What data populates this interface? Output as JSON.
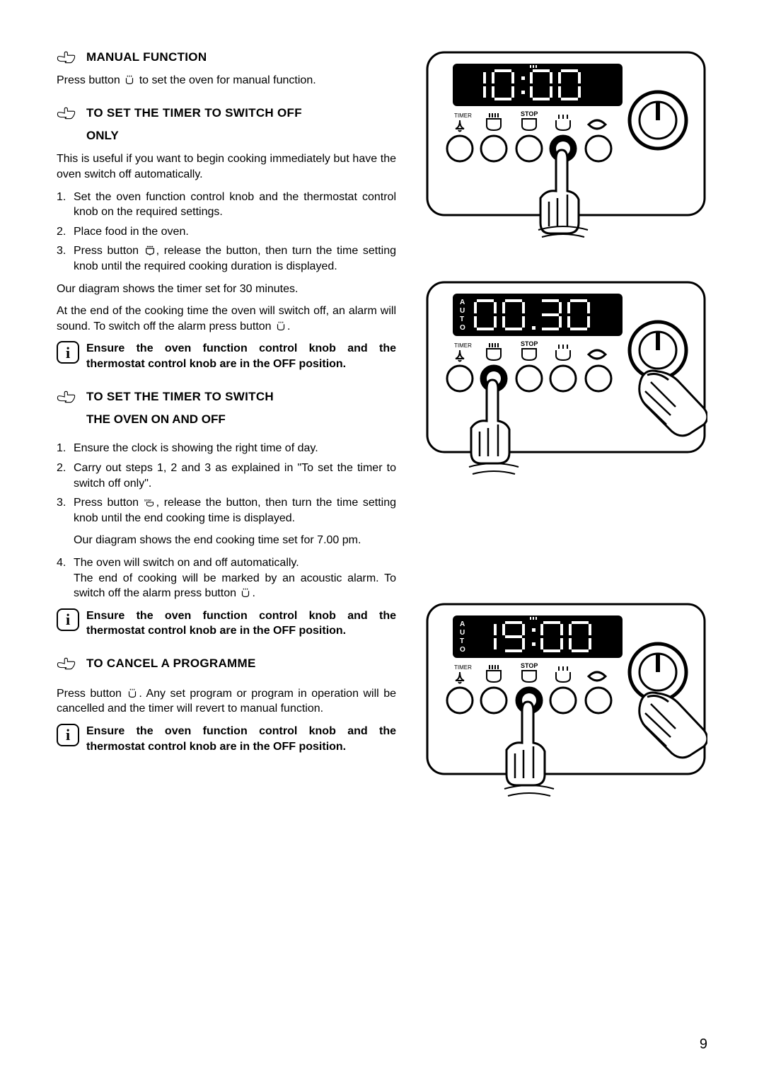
{
  "sections": {
    "manual": {
      "heading": "MANUAL FUNCTION",
      "body": "Press button       to set the oven for manual function."
    },
    "switchOffOnly": {
      "heading": "TO SET THE TIMER TO SWITCH OFF",
      "heading2": "ONLY",
      "intro": "This is useful if you want to begin cooking immediately but have the oven switch off automatically.",
      "steps": {
        "s1n": "1.",
        "s1": "Set  the oven function control knob and the thermostat control knob on the required settings.",
        "s2n": "2.",
        "s2": "Place food in the oven.",
        "s3n": "3.",
        "s3a": "Press button ",
        "s3b": ", release the button, then turn the time setting knob until the required cooking duration is displayed."
      },
      "after1": "Our diagram shows the timer set for 30 minutes.",
      "after2a": "At the end of the cooking time the oven will switch off, an alarm will sound. To switch off the alarm press button ",
      "after2b": ".",
      "ensure": "Ensure the oven function control knob and the thermostat control knob are in the OFF position."
    },
    "switchOnOff": {
      "heading": "TO SET THE TIMER TO SWITCH",
      "heading2": "THE OVEN ON AND OFF",
      "steps": {
        "s1n": "1.",
        "s1": "Ensure the clock is showing the right time of day.",
        "s2n": "2.",
        "s2": "Carry out steps 1, 2 and 3 as explained in \"To set the timer to switch off only\".",
        "s3n": "3.",
        "s3a": "Press button ",
        "s3b": ", release the button, then turn the time setting knob until the end cooking time is displayed.",
        "s3sub": "Our diagram shows the end cooking time set for 7.00 pm.",
        "s4n": "4.",
        "s4a": "The oven will switch on and off automatically.",
        "s4b": "The end of cooking will be marked by an acoustic alarm. To switch off the alarm press button ",
        "s4c": "."
      },
      "ensure": "Ensure the oven function control knob and the thermostat control knob are in the OFF position."
    },
    "cancel": {
      "heading": "TO CANCEL A PROGRAMME",
      "bodyA": "Press button ",
      "bodyB": ". Any set program or program in operation will be cancelled and the timer will revert to manual function.",
      "ensure": "Ensure the oven function control knob and the thermostat control knob are in the OFF position."
    }
  },
  "info_glyph": "i",
  "panels": {
    "p1": {
      "display": "10:00",
      "auto": false,
      "timerLabel": "TIMER",
      "stopLabel": "STOP",
      "knobHighlights": [
        3
      ],
      "showDial": true,
      "handRight": false
    },
    "p2": {
      "display": "00.30",
      "auto": true,
      "timerLabel": "TIMER",
      "stopLabel": "STOP",
      "knobHighlights": [
        1
      ],
      "showDial": true,
      "handRight": true
    },
    "p3": {
      "display": "19:00",
      "auto": true,
      "timerLabel": "TIMER",
      "stopLabel": "STOP",
      "knobHighlights": [
        2
      ],
      "showDial": true,
      "handRight": true
    }
  },
  "pageNumber": "9",
  "colors": {
    "black": "#000000",
    "white": "#ffffff"
  }
}
